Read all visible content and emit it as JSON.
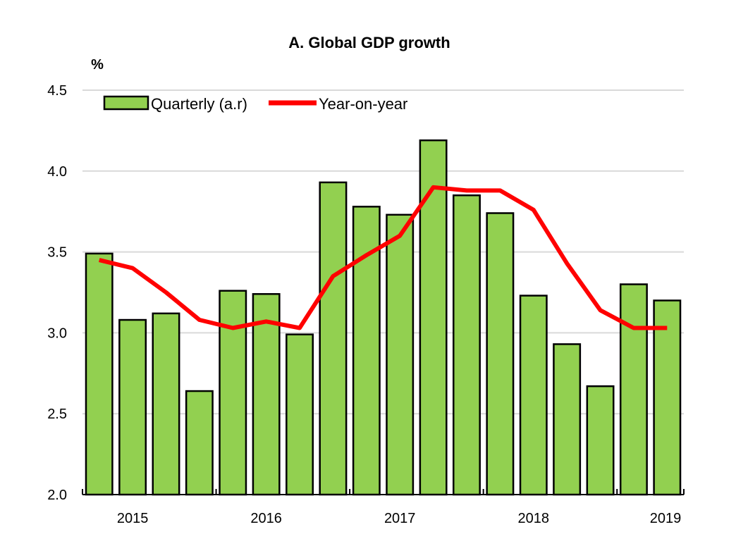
{
  "chart_data": {
    "type": "bar+line",
    "title": "A. Global GDP growth",
    "ylabel": "%",
    "ylim": [
      2.0,
      4.5
    ],
    "yticks": [
      "2.0",
      "2.5",
      "3.0",
      "3.5",
      "4.0",
      "4.5"
    ],
    "grid": true,
    "legend_position": "top-left",
    "x_year_labels": [
      "2015",
      "2016",
      "2017",
      "2018",
      "2019"
    ],
    "quarters": [
      "2015Q1",
      "2015Q2",
      "2015Q3",
      "2015Q4",
      "2016Q1",
      "2016Q2",
      "2016Q3",
      "2016Q4",
      "2017Q1",
      "2017Q2",
      "2017Q3",
      "2017Q4",
      "2018Q1",
      "2018Q2",
      "2018Q3",
      "2018Q4",
      "2019Q1",
      "2019Q2"
    ],
    "series": [
      {
        "name": "Quarterly (a.r)",
        "type": "bar",
        "color": "#92d050",
        "values": [
          3.49,
          3.08,
          3.12,
          2.64,
          3.26,
          3.24,
          2.99,
          3.93,
          3.78,
          3.73,
          4.19,
          3.85,
          3.74,
          3.23,
          2.93,
          2.67,
          3.3,
          3.2
        ]
      },
      {
        "name": "Year-on-year",
        "type": "line",
        "color": "#ff0000",
        "values": [
          3.45,
          3.4,
          3.25,
          3.08,
          3.03,
          3.07,
          3.03,
          3.35,
          3.48,
          3.6,
          3.9,
          3.88,
          3.88,
          3.76,
          3.43,
          3.14,
          3.03,
          3.03
        ]
      }
    ]
  }
}
